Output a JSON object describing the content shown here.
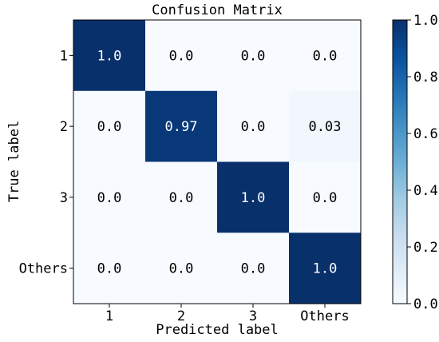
{
  "chart_data": {
    "type": "heatmap",
    "title": "Confusion Matrix",
    "xlabel": "Predicted label",
    "ylabel": "True label",
    "x_categories": [
      "1",
      "2",
      "3",
      "Others"
    ],
    "y_categories": [
      "1",
      "2",
      "3",
      "Others"
    ],
    "values": [
      [
        1.0,
        0.0,
        0.0,
        0.0
      ],
      [
        0.0,
        0.97,
        0.0,
        0.03
      ],
      [
        0.0,
        0.0,
        1.0,
        0.0
      ],
      [
        0.0,
        0.0,
        0.0,
        1.0
      ]
    ],
    "cell_labels": [
      [
        "1.0",
        "0.0",
        "0.0",
        "0.0"
      ],
      [
        "0.0",
        "0.97",
        "0.0",
        "0.03"
      ],
      [
        "0.0",
        "0.0",
        "1.0",
        "0.0"
      ],
      [
        "0.0",
        "0.0",
        "0.0",
        "1.0"
      ]
    ],
    "colormap": "Blues",
    "colorbar": {
      "range": [
        0.0,
        1.0
      ],
      "ticks": [
        "0.0",
        "0.2",
        "0.4",
        "0.6",
        "0.8",
        "1.0"
      ]
    }
  }
}
